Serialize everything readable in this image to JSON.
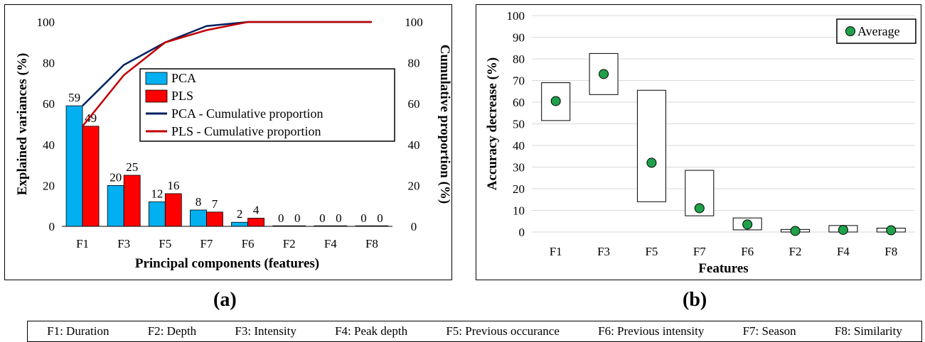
{
  "panel_a_label": "(a)",
  "panel_b_label": "(b)",
  "footer": {
    "items": [
      "F1: Duration",
      "F2: Depth",
      "F3: Intensity",
      "F4: Peak depth",
      "F5: Previous occurance",
      "F6: Previous intensity",
      "F7: Season",
      "F8: Similarity"
    ]
  },
  "chart_data": [
    {
      "type": "bar",
      "categories": [
        "F1",
        "F3",
        "F5",
        "F7",
        "F6",
        "F2",
        "F4",
        "F8"
      ],
      "xlabel": "Principal components (features)",
      "ylabel": "Explained variances (%)",
      "y2label": "Cumulative proportion (%)",
      "ylim": [
        0,
        100
      ],
      "y2lim": [
        0,
        100
      ],
      "yticks": [
        0,
        20,
        40,
        60,
        80,
        100
      ],
      "series": [
        {
          "name": "PCA",
          "kind": "bar",
          "color": "#00b0f0",
          "values": [
            59,
            20,
            12,
            8,
            2,
            0,
            0,
            0
          ],
          "labels": [
            "59",
            "20",
            "12",
            "8",
            "2",
            "0",
            "0",
            "0"
          ]
        },
        {
          "name": "PLS",
          "kind": "bar",
          "color": "#ff0000",
          "values": [
            49,
            25,
            16,
            7,
            4,
            0,
            0,
            0
          ],
          "labels": [
            "49",
            "25",
            "16",
            "7",
            "4",
            "0",
            "0",
            "0"
          ]
        },
        {
          "name": "PCA - Cumulative proportion",
          "kind": "line",
          "axis": "right",
          "color": "#002060",
          "values": [
            59,
            79,
            90,
            98,
            100,
            100,
            100,
            100
          ]
        },
        {
          "name": "PLS - Cumulative proportion",
          "kind": "line",
          "axis": "right",
          "color": "#c00000",
          "values": [
            49,
            74,
            90,
            96,
            100,
            100,
            100,
            100
          ]
        }
      ],
      "legend_position": "upper-right-center",
      "grid": false
    },
    {
      "type": "scatter",
      "categories": [
        "F1",
        "F3",
        "F5",
        "F7",
        "F6",
        "F2",
        "F4",
        "F8"
      ],
      "xlabel": "Features",
      "ylabel": "Accuracy decrease (%)",
      "ylim": [
        0,
        100
      ],
      "yticks": [
        0,
        10,
        20,
        30,
        40,
        50,
        60,
        70,
        80,
        90,
        100
      ],
      "ranges": [
        [
          51.5,
          69
        ],
        [
          63.5,
          82.5
        ],
        [
          14,
          65.5
        ],
        [
          7.5,
          28.5
        ],
        [
          1,
          6.5
        ],
        [
          0,
          1.2
        ],
        [
          0,
          3
        ],
        [
          0,
          1.8
        ]
      ],
      "series": [
        {
          "name": "Average",
          "color": "#1fa14a",
          "values": [
            60.5,
            73,
            32,
            11,
            3.5,
            0.5,
            1,
            0.8
          ]
        }
      ],
      "legend_position": "top-right",
      "grid": true
    }
  ]
}
